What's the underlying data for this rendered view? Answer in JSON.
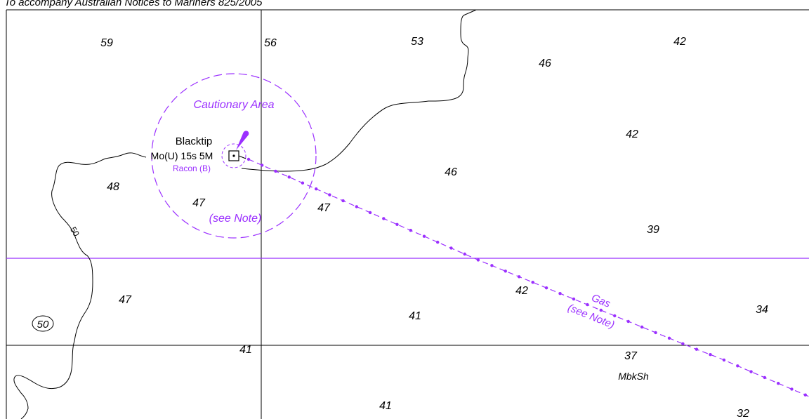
{
  "header": {
    "text": "To accompany Australian Notices to Mariners 825/2005"
  },
  "colors": {
    "magenta": "#9b30ff",
    "ink": "#000000",
    "background": "#ffffff"
  },
  "depths": [
    {
      "text": "59"
    },
    {
      "text": "56"
    },
    {
      "text": "53"
    },
    {
      "text": "42"
    },
    {
      "text": "46"
    },
    {
      "text": "42"
    },
    {
      "text": "48"
    },
    {
      "text": "46"
    },
    {
      "text": "47"
    },
    {
      "text": "47"
    },
    {
      "text": "39"
    },
    {
      "text": "47"
    },
    {
      "text": "42"
    },
    {
      "text": "41"
    },
    {
      "text": "34"
    },
    {
      "text": "41"
    },
    {
      "text": "37"
    },
    {
      "text": "41"
    },
    {
      "text": "32"
    }
  ],
  "contour_label": "50",
  "circled_sounding": "50",
  "seabed": "MbkSh",
  "light": {
    "name": "Blacktip",
    "characteristic": "Mo(U) 15s 5M",
    "racon": "Racon (B)"
  },
  "cautionary_area": {
    "title": "Cautionary Area",
    "note": "(see Note)"
  },
  "pipeline": {
    "label": "Gas",
    "note": "(see Note)"
  }
}
